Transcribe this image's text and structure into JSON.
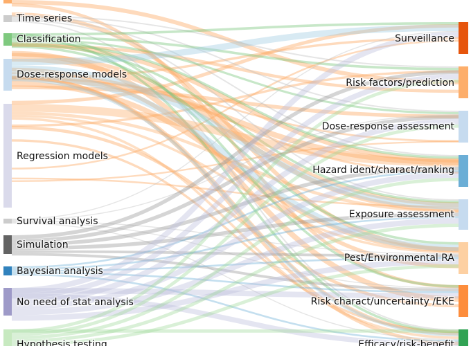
{
  "left_nodes": [
    {
      "label": "Time series"
    },
    {
      "label": "Classification"
    },
    {
      "label": "Dose-response models"
    },
    {
      "label": "Regression models"
    },
    {
      "label": "Survival analysis"
    },
    {
      "label": "Simulation"
    },
    {
      "label": "Bayesian analysis"
    },
    {
      "label": "No need of stat analysis"
    },
    {
      "label": "Hypothesis testing"
    }
  ],
  "right_nodes": [
    {
      "label": "Surveillance"
    },
    {
      "label": "Risk factors/prediction"
    },
    {
      "label": "Dose-response assessment"
    },
    {
      "label": "Hazard ident/charact/ranking"
    },
    {
      "label": "Exposure assessment"
    },
    {
      "label": "Pest/Environmental RA"
    },
    {
      "label": "Risk charact/uncertainty /EKE"
    },
    {
      "label": "Efficacy/risk-benefit"
    }
  ]
}
